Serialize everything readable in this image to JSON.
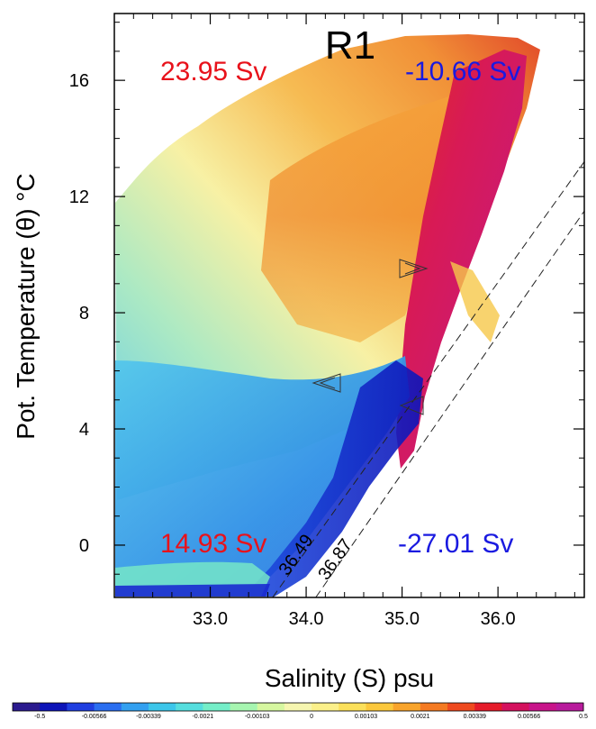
{
  "chart_data": {
    "type": "heatmap",
    "title": "R1",
    "xlabel": "Salinity (S) psu",
    "ylabel": "Pot. Temperature (θ) °C",
    "xlim": [
      32.0,
      36.9
    ],
    "ylim": [
      -1.8,
      18.3
    ],
    "x_ticks": [
      "33.0",
      "34.0",
      "35.0",
      "36.0"
    ],
    "x_tick_values": [
      33.0,
      34.0,
      35.0,
      36.0
    ],
    "y_ticks": [
      "0",
      "4",
      "8",
      "12",
      "16"
    ],
    "y_tick_values": [
      0,
      4,
      8,
      12,
      16
    ],
    "transports": [
      {
        "text": "23.95 Sv",
        "color": "#e8121b",
        "corner": "top-left"
      },
      {
        "text": "-10.66 Sv",
        "color": "#1a1ae0",
        "corner": "top-right"
      },
      {
        "text": "14.93 Sv",
        "color": "#e8121b",
        "corner": "bottom-left"
      },
      {
        "text": "-27.01 Sv",
        "color": "#1a1ae0",
        "corner": "bottom-right"
      }
    ],
    "density_contours": [
      {
        "label": "36.49",
        "points": [
          [
            33.65,
            -1.8
          ],
          [
            36.9,
            13.2
          ]
        ]
      },
      {
        "label": "36.87",
        "points": [
          [
            34.1,
            -1.8
          ],
          [
            36.9,
            11.5
          ]
        ]
      }
    ],
    "colorbar": {
      "labels": [
        "-0.5",
        "-0.00566",
        "-0.00339",
        "-0.0021",
        "-0.00103",
        "0",
        "0.00103",
        "0.0021",
        "0.00339",
        "0.00566",
        "0.5"
      ],
      "colors": [
        "#2b1a8e",
        "#0d14b8",
        "#1f3ee0",
        "#2a6ef0",
        "#33a0f0",
        "#3cc6ea",
        "#55dede",
        "#74eec8",
        "#a6f5b0",
        "#d6f7a0",
        "#f6f6b0",
        "#fbf08a",
        "#fbe05a",
        "#fbc83c",
        "#f8a42c",
        "#f47a22",
        "#ef4a1f",
        "#e51b2a",
        "#d4115e",
        "#c8148a",
        "#b81a9c"
      ]
    }
  }
}
